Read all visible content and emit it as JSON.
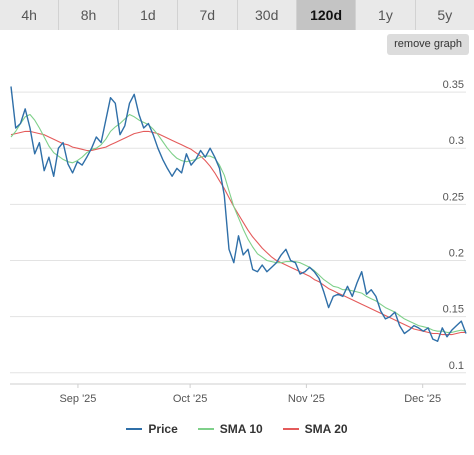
{
  "tabs": [
    {
      "label": "4h",
      "active": false
    },
    {
      "label": "8h",
      "active": false
    },
    {
      "label": "1d",
      "active": false
    },
    {
      "label": "7d",
      "active": false
    },
    {
      "label": "30d",
      "active": false
    },
    {
      "label": "120d",
      "active": true
    },
    {
      "label": "1y",
      "active": false
    },
    {
      "label": "5y",
      "active": false
    }
  ],
  "remove_graph_label": "remove graph",
  "chart_data": {
    "type": "line",
    "x_ticks": [
      "Sep '25",
      "Oct '25",
      "Nov '25",
      "Dec '25"
    ],
    "y_ticks": [
      0.1,
      0.15,
      0.2,
      0.25,
      0.3,
      0.35
    ],
    "ylim": [
      0.09,
      0.375
    ],
    "grid": true,
    "legend_position": "bottom",
    "series": [
      {
        "name": "Price",
        "color": "#2f6fa8",
        "values": [
          0.355,
          0.318,
          0.322,
          0.335,
          0.318,
          0.295,
          0.305,
          0.28,
          0.292,
          0.275,
          0.3,
          0.305,
          0.286,
          0.278,
          0.288,
          0.285,
          0.292,
          0.3,
          0.31,
          0.305,
          0.325,
          0.345,
          0.34,
          0.312,
          0.32,
          0.34,
          0.348,
          0.33,
          0.318,
          0.322,
          0.312,
          0.3,
          0.29,
          0.282,
          0.275,
          0.282,
          0.278,
          0.295,
          0.285,
          0.29,
          0.298,
          0.292,
          0.3,
          0.292,
          0.282,
          0.258,
          0.21,
          0.198,
          0.222,
          0.205,
          0.21,
          0.192,
          0.19,
          0.196,
          0.19,
          0.194,
          0.198,
          0.205,
          0.21,
          0.2,
          0.198,
          0.188,
          0.19,
          0.194,
          0.19,
          0.184,
          0.172,
          0.158,
          0.168,
          0.17,
          0.168,
          0.177,
          0.168,
          0.18,
          0.19,
          0.17,
          0.174,
          0.168,
          0.155,
          0.148,
          0.15,
          0.154,
          0.142,
          0.135,
          0.138,
          0.142,
          0.14,
          0.137,
          0.14,
          0.13,
          0.128,
          0.14,
          0.132,
          0.138,
          0.142,
          0.146,
          0.135
        ]
      },
      {
        "name": "SMA 10",
        "color": "#7fd08a",
        "values": [
          0.31,
          0.315,
          0.322,
          0.328,
          0.33,
          0.325,
          0.318,
          0.31,
          0.302,
          0.296,
          0.293,
          0.29,
          0.288,
          0.287,
          0.289,
          0.292,
          0.296,
          0.299,
          0.3,
          0.303,
          0.308,
          0.315,
          0.319,
          0.322,
          0.326,
          0.33,
          0.328,
          0.325,
          0.323,
          0.321,
          0.317,
          0.312,
          0.306,
          0.3,
          0.295,
          0.291,
          0.289,
          0.288,
          0.289,
          0.29,
          0.292,
          0.293,
          0.293,
          0.291,
          0.285,
          0.276,
          0.262,
          0.248,
          0.238,
          0.228,
          0.219,
          0.212,
          0.206,
          0.203,
          0.2,
          0.199,
          0.198,
          0.198,
          0.199,
          0.199,
          0.199,
          0.198,
          0.196,
          0.194,
          0.191,
          0.187,
          0.183,
          0.18,
          0.177,
          0.176,
          0.174,
          0.174,
          0.173,
          0.172,
          0.171,
          0.168,
          0.166,
          0.164,
          0.161,
          0.158,
          0.156,
          0.154,
          0.151,
          0.148,
          0.146,
          0.144,
          0.142,
          0.141,
          0.14,
          0.138,
          0.137,
          0.137,
          0.136,
          0.136,
          0.137,
          0.138,
          0.137
        ]
      },
      {
        "name": "SMA 20",
        "color": "#e45b5b",
        "values": [
          0.312,
          0.313,
          0.314,
          0.315,
          0.315,
          0.314,
          0.313,
          0.312,
          0.31,
          0.308,
          0.306,
          0.304,
          0.303,
          0.301,
          0.3,
          0.299,
          0.298,
          0.298,
          0.299,
          0.3,
          0.301,
          0.303,
          0.305,
          0.307,
          0.309,
          0.311,
          0.313,
          0.314,
          0.315,
          0.315,
          0.314,
          0.313,
          0.311,
          0.309,
          0.307,
          0.305,
          0.303,
          0.301,
          0.299,
          0.296,
          0.293,
          0.289,
          0.284,
          0.278,
          0.271,
          0.264,
          0.256,
          0.248,
          0.241,
          0.234,
          0.227,
          0.221,
          0.216,
          0.211,
          0.207,
          0.203,
          0.2,
          0.198,
          0.196,
          0.194,
          0.192,
          0.19,
          0.188,
          0.186,
          0.183,
          0.181,
          0.178,
          0.175,
          0.173,
          0.171,
          0.169,
          0.167,
          0.165,
          0.163,
          0.161,
          0.159,
          0.157,
          0.155,
          0.153,
          0.151,
          0.149,
          0.147,
          0.145,
          0.143,
          0.141,
          0.139,
          0.138,
          0.137,
          0.136,
          0.135,
          0.135,
          0.134,
          0.134,
          0.134,
          0.135,
          0.136,
          0.136
        ]
      }
    ]
  }
}
